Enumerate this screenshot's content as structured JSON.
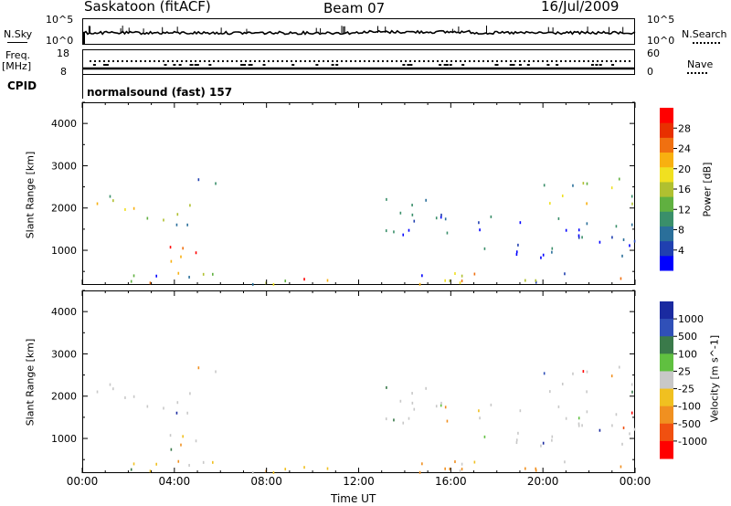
{
  "header": {
    "title": "Saskatoon (fitACF)",
    "beam": "Beam 07",
    "date": "16/Jul/2009"
  },
  "strip_labels": {
    "nsky": "N.Sky",
    "nsky_top": "10^5",
    "nsky_bottom": "10^0",
    "nsearch": "N.Search",
    "nsearch_top": "10^5",
    "nsearch_bottom": "10^0",
    "freq": "Freq.",
    "freq_unit": "[MHz]",
    "freq_top": "18",
    "freq_bottom": "8",
    "nave": "Nave",
    "nave_top": "60",
    "nave_bottom": "0",
    "cpid": "CPID",
    "cpid_value": "normalsound (fast) 157"
  },
  "chart_data": [
    {
      "type": "heatmap",
      "name": "power",
      "ylabel": "Slant Range [km]",
      "ylim": [
        180,
        4500
      ],
      "yticks": [
        1000,
        2000,
        3000,
        4000
      ],
      "xlim": [
        0,
        24
      ],
      "colorbar": {
        "label": "Power [dB]",
        "ticks": [
          "4",
          "8",
          "12",
          "16",
          "20",
          "24",
          "28"
        ],
        "colors": [
          "#0000ff",
          "#2040b0",
          "#2a6f9a",
          "#3a8f6a",
          "#60b040",
          "#b0c030",
          "#f0e020",
          "#f8b010",
          "#f07010",
          "#e83000",
          "#ff0000"
        ]
      },
      "echo_regions": [
        {
          "t0": 0.0,
          "t1": 24.0,
          "r0": 180,
          "r1": 480,
          "value": "mixed"
        },
        {
          "t0": 0.0,
          "t1": 2.5,
          "r0": 1800,
          "r1": 2300,
          "value": "mid"
        },
        {
          "t0": 2.5,
          "t1": 4.8,
          "r0": 1400,
          "r1": 2100,
          "value": "mid"
        },
        {
          "t0": 3.0,
          "t1": 5.0,
          "r0": 500,
          "r1": 1100,
          "value": "high"
        },
        {
          "t0": 5.0,
          "t1": 5.8,
          "r0": 2200,
          "r1": 2900,
          "value": "low"
        },
        {
          "t0": 13.0,
          "t1": 17.0,
          "r0": 1200,
          "r1": 2200,
          "value": "low"
        },
        {
          "t0": 17.0,
          "t1": 24.0,
          "r0": 800,
          "r1": 1800,
          "value": "low"
        },
        {
          "t0": 20.0,
          "t1": 24.0,
          "r0": 2000,
          "r1": 2700,
          "value": "mid"
        }
      ]
    },
    {
      "type": "heatmap",
      "name": "velocity",
      "ylabel": "Slant Range [km]",
      "ylim": [
        180,
        4500
      ],
      "yticks": [
        1000,
        2000,
        3000,
        4000
      ],
      "xlim": [
        0,
        24
      ],
      "xticks": [
        "00:00",
        "04:00",
        "08:00",
        "12:00",
        "16:00",
        "20:00",
        "00:00"
      ],
      "xlabel": "Time UT",
      "colorbar": {
        "label": "Velocity [m s^-1]",
        "ticks": [
          "1000",
          "500",
          "100",
          "25",
          "-25",
          "-100",
          "-500",
          "-1000"
        ],
        "colors": [
          "#1a2aa0",
          "#3050b8",
          "#3a7a4a",
          "#60c040",
          "#c8c8c8",
          "#f0c020",
          "#f09020",
          "#f05010",
          "#ff0000"
        ]
      }
    }
  ]
}
